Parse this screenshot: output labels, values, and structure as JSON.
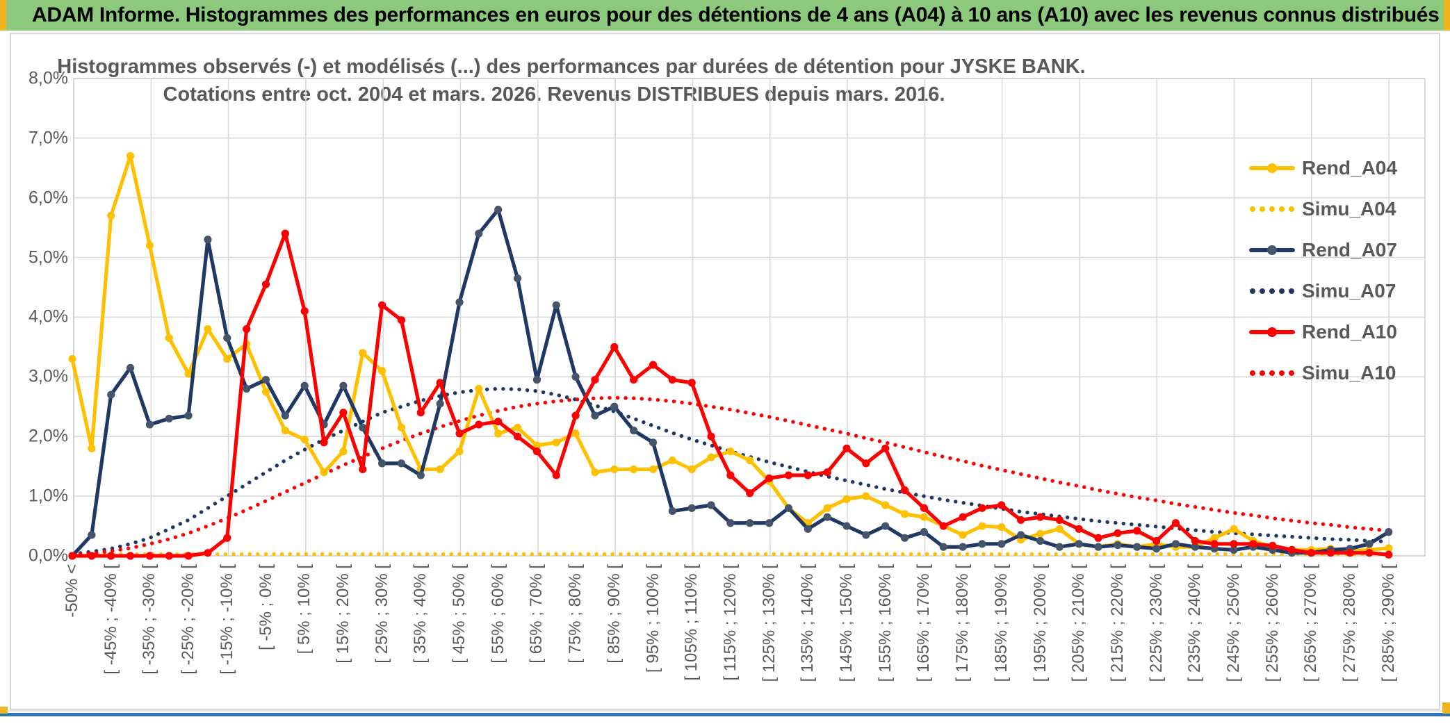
{
  "banner": {
    "text": "ADAM Informe. Histogrammes des performances en euros pour des détentions de 4 ans (A04) à 10 ans (A10) avec les revenus connus distribués"
  },
  "accent_colors": {
    "banner_green": "#8CC97C",
    "edge_yellow": "#EFB41E",
    "bottom_bar_blue": "#2E74B5",
    "text_gray": "#595959",
    "gridline": "#D9D9D9"
  },
  "chart_data": {
    "type": "line",
    "title_line1": "Histogrammes observés (-) et modélisés (...) des performances par durées de détention pour JYSKE BANK.",
    "title_line2": "Cotations entre oct. 2004 et mars. 2026. Revenus DISTRIBUES depuis mars. 2016.",
    "ylabel": "",
    "xlabel": "",
    "ylim": [
      0,
      8
    ],
    "y_tick_labels": [
      "8,0%",
      "7,0%",
      "6,0%",
      "5,0%",
      "4,0%",
      "3,0%",
      "2,0%",
      "1,0%",
      "0,0%"
    ],
    "grid": true,
    "legend_position": "right",
    "categories": [
      "-50% <",
      "[ -45% ; -40% [",
      "[ -35% ; -30% [",
      "[ -25% ; -20% [",
      "[ -15% ; -10% [",
      "[ -5% ; 0% [",
      "[ 5% ; 10% [",
      "[ 15% ; 20% [",
      "[ 25% ; 30% [",
      "[ 35% ; 40% [",
      "[ 45% ; 50% [",
      "[ 55% ; 60% [",
      "[ 65% ; 70% [",
      "[ 75% ; 80% [",
      "[ 85% ; 90% [",
      "[ 95% ; 100% [",
      "[ 105% ; 110% [",
      "[ 115% ; 120% [",
      "[ 125% ; 130% [",
      "[ 135% ; 140% [",
      "[ 145% ; 150% [",
      "[ 155% ; 160% [",
      "[ 165% ; 170% [",
      "[ 175% ; 180% [",
      "[ 185% ; 190% [",
      "[ 195% ; 200% [",
      "[ 205% ; 210% [",
      "[ 215% ; 220% [",
      "[ 225% ; 230% [",
      "[ 235% ; 240% [",
      "[ 245% ; 250% [",
      "[ 255% ; 260% [",
      "[ 265% ; 270% [",
      "[ 275% ; 280% [",
      "[ 285% ; 290% ["
    ],
    "note": "categories label every second 5%-wide bin; 69 bins total",
    "series": [
      {
        "name": "Rend_A04",
        "style": "solid",
        "color": "#FFC000",
        "marker": "#FFC000",
        "values": [
          3.3,
          1.8,
          5.7,
          6.7,
          5.2,
          3.65,
          3.05,
          3.8,
          3.3,
          3.55,
          2.75,
          2.1,
          1.95,
          1.4,
          1.75,
          3.4,
          3.1,
          2.15,
          1.45,
          1.45,
          1.75,
          2.8,
          2.05,
          2.15,
          1.85,
          1.9,
          2.05,
          1.4,
          1.45,
          1.45,
          1.45,
          1.6,
          1.45,
          1.65,
          1.75,
          1.6,
          1.25,
          0.8,
          0.55,
          0.8,
          0.95,
          1.0,
          0.85,
          0.7,
          0.65,
          0.5,
          0.35,
          0.5,
          0.48,
          0.27,
          0.37,
          0.45,
          0.2,
          0.15,
          0.2,
          0.15,
          0.2,
          0.15,
          0.15,
          0.3,
          0.45,
          0.25,
          0.15,
          0.1,
          0.1,
          0.12,
          0.08,
          0.1,
          0.13
        ]
      },
      {
        "name": "Simu_A04",
        "style": "dots",
        "color": "#FFC000",
        "marker": "#FFC000",
        "values": [
          0.03,
          0.03,
          0.03,
          0.03,
          0.03,
          0.03,
          0.03,
          0.03,
          0.03,
          0.03,
          0.03,
          0.03,
          0.03,
          0.03,
          0.03,
          0.03,
          0.03,
          0.03,
          0.03,
          0.03,
          0.03,
          0.03,
          0.03,
          0.03,
          0.03,
          0.03,
          0.03,
          0.03,
          0.03,
          0.03,
          0.03,
          0.03,
          0.03,
          0.03,
          0.03,
          0.03,
          0.03,
          0.03,
          0.03,
          0.03,
          0.03,
          0.03,
          0.03,
          0.03,
          0.03,
          0.03,
          0.03,
          0.03,
          0.03,
          0.03,
          0.03,
          0.03,
          0.03,
          0.03,
          0.03,
          0.03,
          0.03,
          0.03,
          0.03,
          0.03,
          0.03,
          0.03,
          0.03,
          0.03,
          0.03,
          0.03,
          0.03,
          0.03,
          0.03
        ]
      },
      {
        "name": "Rend_A07",
        "style": "solid",
        "color": "#1F3864",
        "marker": "#44546A",
        "values": [
          0.0,
          0.35,
          2.7,
          3.15,
          2.2,
          2.3,
          2.35,
          5.3,
          3.65,
          2.8,
          2.95,
          2.35,
          2.85,
          2.2,
          2.85,
          2.15,
          1.55,
          1.55,
          1.35,
          2.55,
          4.25,
          5.4,
          5.8,
          4.65,
          2.95,
          4.2,
          3.0,
          2.35,
          2.5,
          2.1,
          1.9,
          0.75,
          0.8,
          0.85,
          0.55,
          0.55,
          0.55,
          0.8,
          0.45,
          0.65,
          0.5,
          0.35,
          0.5,
          0.3,
          0.4,
          0.15,
          0.15,
          0.2,
          0.2,
          0.35,
          0.25,
          0.15,
          0.2,
          0.15,
          0.18,
          0.15,
          0.12,
          0.2,
          0.15,
          0.12,
          0.1,
          0.15,
          0.1,
          0.05,
          0.05,
          0.1,
          0.12,
          0.2,
          0.4
        ]
      },
      {
        "name": "Simu_A07",
        "style": "dots",
        "color": "#1F3864",
        "marker": "#1F3864",
        "values": [
          0.03,
          0.07,
          0.12,
          0.2,
          0.3,
          0.45,
          0.6,
          0.8,
          1.0,
          1.2,
          1.4,
          1.6,
          1.78,
          1.95,
          2.1,
          2.25,
          2.4,
          2.5,
          2.6,
          2.68,
          2.74,
          2.78,
          2.8,
          2.79,
          2.76,
          2.7,
          2.62,
          2.52,
          2.42,
          2.3,
          2.18,
          2.06,
          1.95,
          1.85,
          1.75,
          1.66,
          1.57,
          1.49,
          1.41,
          1.33,
          1.26,
          1.19,
          1.12,
          1.06,
          1.0,
          0.94,
          0.89,
          0.84,
          0.79,
          0.74,
          0.7,
          0.66,
          0.62,
          0.58,
          0.55,
          0.52,
          0.49,
          0.46,
          0.43,
          0.4,
          0.38,
          0.36,
          0.34,
          0.32,
          0.3,
          0.28,
          0.27,
          0.25,
          0.24
        ]
      },
      {
        "name": "Rend_A10",
        "style": "solid",
        "color": "#FF0000",
        "marker": "#FF0000",
        "values": [
          0.0,
          0.0,
          0.0,
          0.0,
          0.0,
          0.0,
          0.0,
          0.05,
          0.3,
          3.8,
          4.55,
          5.4,
          4.1,
          1.9,
          2.4,
          1.45,
          4.2,
          3.95,
          2.4,
          2.9,
          2.05,
          2.2,
          2.25,
          2.0,
          1.75,
          1.35,
          2.35,
          2.95,
          3.5,
          2.95,
          3.2,
          2.95,
          2.9,
          2.0,
          1.35,
          1.05,
          1.3,
          1.35,
          1.35,
          1.4,
          1.8,
          1.55,
          1.8,
          1.1,
          0.8,
          0.5,
          0.65,
          0.8,
          0.85,
          0.6,
          0.65,
          0.6,
          0.45,
          0.3,
          0.38,
          0.42,
          0.25,
          0.55,
          0.25,
          0.2,
          0.2,
          0.2,
          0.17,
          0.1,
          0.05,
          0.05,
          0.05,
          0.05,
          0.02
        ]
      },
      {
        "name": "Simu_A10",
        "style": "dots",
        "color": "#FF0000",
        "marker": "#FF0000",
        "values": [
          0.02,
          0.04,
          0.08,
          0.13,
          0.2,
          0.28,
          0.38,
          0.5,
          0.63,
          0.77,
          0.92,
          1.07,
          1.22,
          1.37,
          1.52,
          1.66,
          1.8,
          1.93,
          2.05,
          2.16,
          2.26,
          2.35,
          2.43,
          2.5,
          2.55,
          2.59,
          2.62,
          2.64,
          2.65,
          2.64,
          2.62,
          2.59,
          2.55,
          2.5,
          2.45,
          2.39,
          2.33,
          2.26,
          2.19,
          2.12,
          2.05,
          1.97,
          1.9,
          1.82,
          1.74,
          1.66,
          1.59,
          1.51,
          1.44,
          1.37,
          1.3,
          1.23,
          1.17,
          1.1,
          1.04,
          0.98,
          0.93,
          0.87,
          0.82,
          0.77,
          0.72,
          0.68,
          0.63,
          0.59,
          0.55,
          0.52,
          0.48,
          0.45,
          0.42
        ]
      }
    ]
  },
  "legend": {
    "items": [
      {
        "label": "Rend_A04"
      },
      {
        "label": "Simu_A04"
      },
      {
        "label": "Rend_A07"
      },
      {
        "label": "Simu_A07"
      },
      {
        "label": "Rend_A10"
      },
      {
        "label": "Simu_A10"
      }
    ]
  }
}
